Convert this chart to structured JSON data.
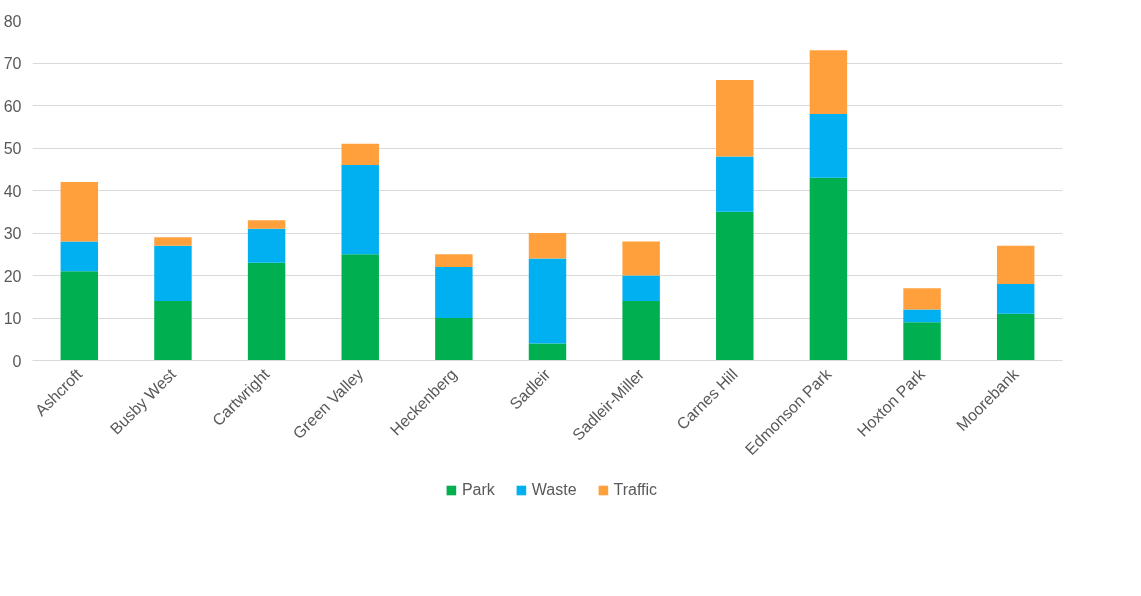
{
  "chart_data": {
    "type": "bar",
    "stacked": true,
    "categories": [
      "Ashcroft",
      "Busby West",
      "Cartwright",
      "Green Valley",
      "Heckenberg",
      "Sadleir",
      "Sadleir-Miller",
      "Carnes Hill",
      "Edmonson Park",
      "Hoxton Park",
      "Moorebank"
    ],
    "series": [
      {
        "name": "Park",
        "color": "#00b050",
        "values": [
          21,
          14,
          23,
          25,
          10,
          4,
          14,
          35,
          43,
          9,
          11
        ]
      },
      {
        "name": "Waste",
        "color": "#00b0f0",
        "values": [
          7,
          13,
          8,
          21,
          12,
          20,
          6,
          13,
          15,
          3,
          7
        ]
      },
      {
        "name": "Traffic",
        "color": "#ffa03c",
        "values": [
          14,
          2,
          2,
          5,
          3,
          6,
          8,
          18,
          15,
          5,
          9
        ]
      }
    ],
    "ylim": [
      0,
      80
    ],
    "yticks": [
      0,
      10,
      20,
      30,
      40,
      50,
      60,
      70,
      80
    ],
    "grid": "y",
    "legend": "bottom"
  }
}
